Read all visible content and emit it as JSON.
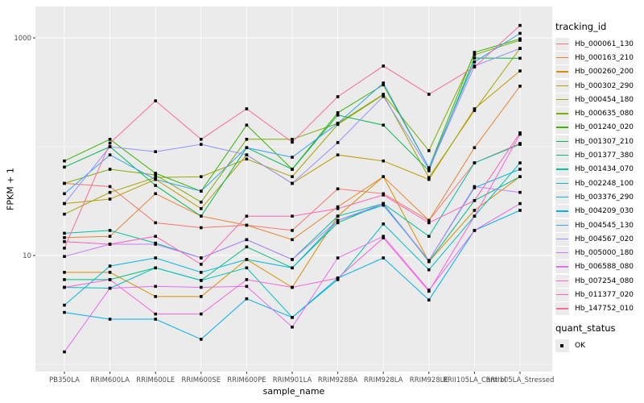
{
  "chart_data": {
    "type": "line",
    "title": "",
    "xlabel": "sample_name",
    "ylabel": "FPKM + 1",
    "x_categories": [
      "PB350LA",
      "RRIM600LA",
      "RRIM600LE",
      "RRIM600SE",
      "RRIM600PE",
      "RRIM901LA",
      "RRIM928BA",
      "RRIM928LA",
      "RRIM928LE",
      "RRII105LA_Control",
      "RRII105LA_Stressed"
    ],
    "y_scale": "log10",
    "ylim": [
      1.2,
      1450
    ],
    "y_major_ticks": [
      {
        "value": 1000,
        "label": "1000"
      },
      {
        "value": 10,
        "label": "10"
      }
    ],
    "y_minor_gridlines": [
      1,
      100
    ],
    "grid": true,
    "legend_position": "right",
    "point_color": "#000000",
    "series": [
      {
        "name": "Hb_000061_130",
        "color": "#F8766D",
        "values": [
          46,
          43,
          20,
          18,
          19,
          17,
          41,
          37,
          21,
          71,
          107
        ]
      },
      {
        "name": "Hb_000163_210",
        "color": "#EA8331",
        "values": [
          14.6,
          15,
          37,
          23,
          19,
          14,
          28,
          53,
          21,
          98,
          360
        ]
      },
      {
        "name": "Hb_000260_200",
        "color": "#D89000",
        "values": [
          7,
          7,
          4.2,
          4.2,
          9.2,
          5.1,
          23,
          53,
          8.8,
          26,
          53
        ]
      },
      {
        "name": "Hb_000302_290",
        "color": "#C09B00",
        "values": [
          30,
          33,
          50,
          27,
          84,
          46,
          84,
          74,
          50,
          223,
          497
        ]
      },
      {
        "name": "Hb_000454_180",
        "color": "#A3A500",
        "values": [
          24,
          38,
          52,
          53,
          77,
          53,
          160,
          300,
          52,
          215,
          800
        ]
      },
      {
        "name": "Hb_000635_080",
        "color": "#7CAE00",
        "values": [
          46,
          62,
          55,
          31,
          117,
          117,
          164,
          303,
          92,
          700,
          950
        ]
      },
      {
        "name": "Hb_001240_020",
        "color": "#39B600",
        "values": [
          74,
          117,
          57,
          39,
          158,
          62,
          205,
          370,
          64,
          736,
          980
        ]
      },
      {
        "name": "Hb_001307_210",
        "color": "#00BB4E",
        "values": [
          65,
          100,
          44,
          23,
          98,
          62,
          195,
          158,
          60,
          653,
          650
        ]
      },
      {
        "name": "Hb_001377_380",
        "color": "#00BF7D",
        "values": [
          6,
          6,
          7.7,
          5.9,
          12,
          7.7,
          20,
          30,
          8.8,
          32,
          53
        ]
      },
      {
        "name": "Hb_001434_070",
        "color": "#00C1A3",
        "values": [
          16,
          17,
          13,
          9.5,
          14,
          9.2,
          23,
          30,
          15,
          71,
          105
        ]
      },
      {
        "name": "Hb_002248_100",
        "color": "#00BFC4",
        "values": [
          5.1,
          5,
          7.7,
          5.9,
          7.7,
          2.7,
          6,
          19.5,
          7.4,
          23,
          71
        ]
      },
      {
        "name": "Hb_003376_290",
        "color": "#00BAE0",
        "values": [
          3.5,
          8,
          9.5,
          7,
          9.2,
          7.7,
          21,
          29,
          9,
          42,
          62
        ]
      },
      {
        "name": "Hb_004209_030",
        "color": "#00B0F6",
        "values": [
          3,
          2.6,
          2.6,
          1.7,
          4,
          2.7,
          6.2,
          9.5,
          3.9,
          17,
          26
        ]
      },
      {
        "name": "Hb_004545_130",
        "color": "#35A2FF",
        "values": [
          37,
          84,
          50,
          39,
          98,
          80,
          164,
          385,
          64,
          600,
          1100
        ]
      },
      {
        "name": "Hb_004567_020",
        "color": "#9590FF",
        "values": [
          30,
          100,
          90,
          105,
          84,
          46,
          109,
          290,
          62,
          551,
          800
        ]
      },
      {
        "name": "Hb_005000_180",
        "color": "#C77CFF",
        "values": [
          9.8,
          12.7,
          12.7,
          9.5,
          14,
          9.2,
          21,
          30,
          9,
          43,
          38
        ]
      },
      {
        "name": "Hb_006588_080",
        "color": "#E76BF3",
        "values": [
          1.3,
          5,
          5.2,
          5.1,
          5.2,
          2.2,
          9.5,
          15,
          4.8,
          17,
          30
        ]
      },
      {
        "name": "Hb_007254_080",
        "color": "#FA62DB",
        "values": [
          5.1,
          6,
          2.9,
          2.9,
          6,
          5.1,
          6.2,
          14.5,
          4.7,
          23,
          130
        ]
      },
      {
        "name": "Hb_011377_020",
        "color": "#FF62BC",
        "values": [
          13.4,
          12.7,
          15,
          8.3,
          23,
          23,
          27,
          36,
          20,
          32,
          134
        ]
      },
      {
        "name": "Hb_147752_010",
        "color": "#FF6A98",
        "values": [
          11.7,
          108,
          264,
          117,
          223,
          110,
          288,
          551,
          303,
          540,
          1300
        ]
      }
    ]
  },
  "legend": {
    "tracking_title": "tracking_id",
    "quant_title": "quant_status",
    "quant_items": [
      {
        "label": "OK"
      }
    ]
  },
  "axes": {
    "x_title": "sample_name",
    "y_title": "FPKM + 1"
  },
  "colors": {
    "panel_background": "#EBEBEB",
    "gridline": "#FFFFFF",
    "tick_label": "#4D4D4D",
    "tick_mark": "#333333",
    "point": "#000000"
  }
}
